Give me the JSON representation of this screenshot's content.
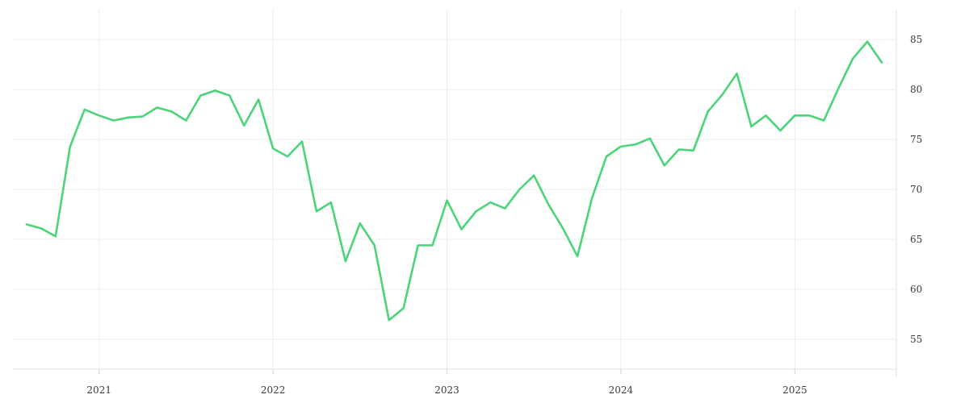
{
  "chart_data": {
    "type": "line",
    "title": "",
    "xlabel": "",
    "ylabel": "",
    "x_ticks": [
      "2021",
      "2022",
      "2023",
      "2024",
      "2025"
    ],
    "y_ticks": [
      55,
      60,
      65,
      70,
      75,
      80,
      85
    ],
    "ylim": [
      52,
      88
    ],
    "grid": true,
    "y_axis_side": "right",
    "colors": {
      "line": "#4cd47a",
      "grid": "#ececec"
    },
    "series": [
      {
        "x": [
          "2020-08",
          "2020-09",
          "2020-10",
          "2020-11",
          "2020-12",
          "2021-01",
          "2021-02",
          "2021-03",
          "2021-04",
          "2021-05",
          "2021-06",
          "2021-07",
          "2021-08",
          "2021-09",
          "2021-10",
          "2021-11",
          "2021-12",
          "2022-01",
          "2022-02",
          "2022-03",
          "2022-04",
          "2022-05",
          "2022-06",
          "2022-07",
          "2022-08",
          "2022-09",
          "2022-10",
          "2022-11",
          "2022-12",
          "2023-01",
          "2023-02",
          "2023-03",
          "2023-04",
          "2023-05",
          "2023-06",
          "2023-07",
          "2023-08",
          "2023-09",
          "2023-10",
          "2023-11",
          "2023-12",
          "2024-01",
          "2024-02",
          "2024-03",
          "2024-04",
          "2024-05",
          "2024-06",
          "2024-07",
          "2024-08",
          "2024-09",
          "2024-10",
          "2024-11",
          "2024-12",
          "2025-01",
          "2025-02",
          "2025-03",
          "2025-04",
          "2025-05",
          "2025-06",
          "2025-07"
        ],
        "values": [
          66.5,
          66.1,
          65.3,
          74.3,
          78.0,
          77.4,
          76.9,
          77.2,
          77.3,
          78.2,
          77.8,
          76.9,
          79.4,
          79.9,
          79.4,
          76.4,
          79.0,
          74.1,
          73.3,
          74.8,
          67.8,
          68.7,
          62.8,
          66.6,
          64.4,
          56.9,
          58.1,
          64.4,
          64.4,
          68.9,
          66.0,
          67.8,
          68.7,
          68.1,
          70.0,
          71.4,
          68.5,
          66.1,
          63.3,
          69.1,
          73.3,
          74.3,
          74.5,
          75.1,
          72.4,
          74.0,
          73.9,
          77.8,
          79.5,
          81.6,
          76.3,
          77.4,
          75.9,
          77.4,
          77.4,
          76.9,
          80.1,
          83.1,
          84.8,
          82.7
        ]
      }
    ]
  }
}
